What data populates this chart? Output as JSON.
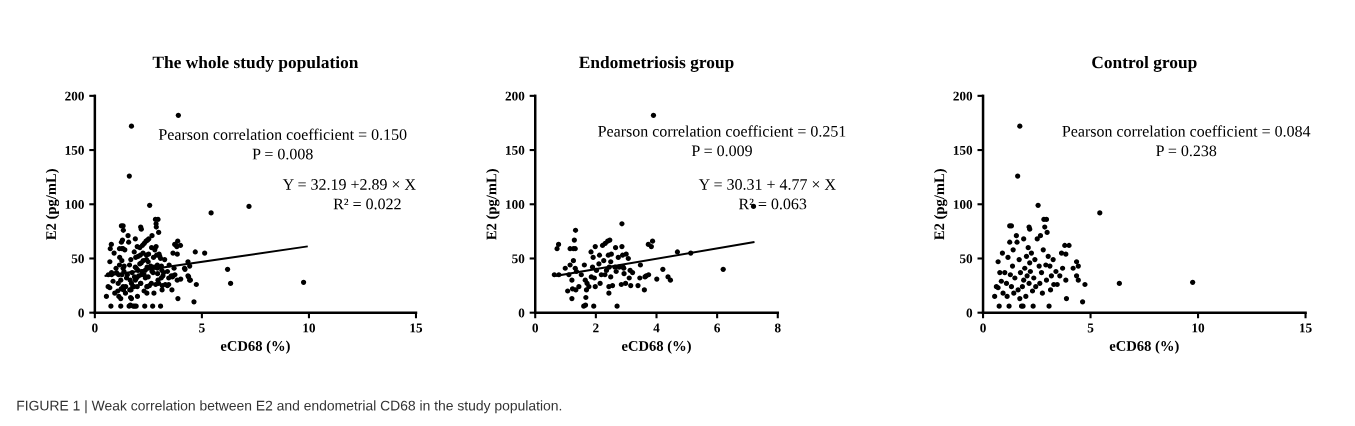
{
  "chart_data": [
    {
      "type": "scatter",
      "title": "The whole study population",
      "xlabel": "eCD68 (%)",
      "ylabel": "E2 (pg/mL)",
      "xlim": [
        0,
        15
      ],
      "xticks": [
        0,
        5,
        10,
        15
      ],
      "ylim": [
        0,
        200
      ],
      "yticks": [
        0,
        50,
        100,
        150,
        200
      ],
      "annotations": [
        "Pearson correlation coefficient = 0.150",
        "P = 0.008",
        "Y = 32.19 +2.89 × X",
        "R² = 0.022",
        "FIGURE 1 | Weak correlation between E2 and endometrial CD68 in the study population."
      ],
      "series": [
        {
          "marker": "circle",
          "color": "#000000",
          "x": [
            0.63,
            0.78,
            0.72,
            0.77,
            0.99,
            1.07,
            1.11,
            1.15,
            1.15,
            1.21,
            1.21,
            1.23,
            1.26,
            1.26,
            1.29,
            1.33,
            1.32,
            1.32,
            1.36,
            1.34,
            1.44,
            1.52,
            1.62,
            1.6,
            1.66,
            1.65,
            1.67,
            1.69,
            1.71,
            1.77,
            1.84,
            1.85,
            1.89,
            1.91,
            1.93,
            1.95,
            1.98,
            1.98,
            2.02,
            2.1,
            2.12,
            2.14,
            2.18,
            2.22,
            2.26,
            2.3,
            2.31,
            2.35,
            2.39,
            2.41,
            2.43,
            2.43,
            2.44,
            2.46,
            2.49,
            2.49,
            2.51,
            2.55,
            2.63,
            2.65,
            2.67,
            2.7,
            2.74,
            2.77,
            2.84,
            2.86,
            2.86,
            2.88,
            2.92,
            2.93,
            2.98,
            3.0,
            3.07,
            3.1,
            3.13,
            3.15,
            3.21,
            3.39,
            3.45,
            3.47,
            3.6,
            3.62,
            3.66,
            3.73,
            3.74,
            3.83,
            3.87,
            4.01,
            4.21,
            4.38,
            4.46,
            4.69,
            5.13,
            6.2,
            7.2,
            3.9,
            0.54,
            0.62,
            0.7,
            0.7,
            0.75,
            0.78,
            0.85,
            0.9,
            0.93,
            1.01,
            1.09,
            1.12,
            1.16,
            1.21,
            1.24,
            1.32,
            1.24,
            1.27,
            1.32,
            1.37,
            1.4,
            1.43,
            1.48,
            1.55,
            1.58,
            1.61,
            1.63,
            1.68,
            1.71,
            1.74,
            1.79,
            1.83,
            1.86,
            1.89,
            1.89,
            1.94,
            1.99,
            2.02,
            2.05,
            2.1,
            2.14,
            2.17,
            2.14,
            2.17,
            2.2,
            2.25,
            2.3,
            2.33,
            2.36,
            2.41,
            2.45,
            2.52,
            2.56,
            2.61,
            2.64,
            2.67,
            2.72,
            2.76,
            2.8,
            2.83,
            2.95,
            2.87,
            2.92,
            2.95,
            2.98,
            3.03,
            3.07,
            3.11,
            3.14,
            3.18,
            3.26,
            3.29,
            3.39,
            3.45,
            3.57,
            3.65,
            3.7,
            3.8,
            4.0,
            3.85,
            3.85,
            3.88,
            4.19,
            4.35,
            4.35,
            4.43,
            4.43,
            4.63,
            4.74,
            5.43,
            6.34,
            9.75,
            1.71
          ],
          "values": [
            35,
            35,
            59,
            63,
            41,
            20,
            35,
            44,
            59,
            13,
            30,
            22,
            48,
            59,
            67,
            76,
            59,
            41,
            38,
            21,
            24,
            35,
            44,
            6,
            7,
            30,
            14,
            21,
            27,
            24,
            56,
            33,
            42,
            51,
            6,
            32,
            61,
            24,
            39,
            45,
            53,
            27,
            35,
            62,
            48,
            35,
            64,
            39,
            66,
            53,
            24,
            18,
            42,
            67,
            47,
            33,
            54,
            25,
            42,
            60,
            38,
            6,
            51,
            42,
            26,
            82,
            61,
            53,
            41,
            36,
            27,
            54,
            50,
            32,
            39,
            25,
            37,
            25,
            32,
            44,
            21,
            33,
            34,
            63,
            35,
            61,
            66,
            31,
            40,
            33,
            30,
            56,
            55,
            40,
            98,
            182,
            15,
            24,
            23,
            47,
            6,
            37,
            29,
            55,
            18,
            37,
            27,
            15,
            51,
            6,
            80,
            80,
            65,
            35,
            24,
            43,
            58,
            18,
            32,
            71,
            65,
            126,
            21,
            49,
            13,
            37,
            6,
            24,
            6,
            68,
            30,
            41,
            15,
            52,
            34,
            60,
            79,
            77,
            27,
            46,
            38,
            55,
            20,
            6,
            32,
            49,
            24,
            68,
            99,
            43,
            27,
            71,
            37,
            18,
            58,
            86,
            86,
            79,
            44,
            30,
            74,
            52,
            6,
            43,
            21,
            34,
            49,
            26,
            38,
            26,
            34,
            55,
            41,
            62,
            62,
            54,
            30,
            13,
            41,
            47,
            34,
            30,
            43,
            10,
            26,
            92,
            27,
            28,
            172
          ]
        },
        {
          "type": "line",
          "marker": "none",
          "color": "#000000",
          "x": [
            0.5,
            9.9
          ],
          "values": [
            34,
            61
          ]
        }
      ]
    },
    {
      "type": "scatter",
      "title": "Endometriosis group",
      "xlabel": "eCD68 (%)",
      "ylabel": "E2 (pg/mL)",
      "xlim": [
        0,
        8
      ],
      "xticks": [
        0,
        2,
        4,
        6,
        8
      ],
      "ylim": [
        0,
        200
      ],
      "yticks": [
        0,
        50,
        100,
        150,
        200
      ],
      "annotations": [
        "Pearson correlation coefficient = 0.251",
        "P = 0.009",
        "Y = 30.31 + 4.77 × X",
        "R² = 0.063"
      ],
      "series": [
        {
          "marker": "circle",
          "color": "#000000",
          "x": [
            0.63,
            0.78,
            0.72,
            0.77,
            0.99,
            1.07,
            1.11,
            1.15,
            1.15,
            1.21,
            1.21,
            1.23,
            1.26,
            1.26,
            1.29,
            1.33,
            1.32,
            1.32,
            1.36,
            1.34,
            1.44,
            1.52,
            1.62,
            1.6,
            1.66,
            1.65,
            1.67,
            1.69,
            1.71,
            1.77,
            1.84,
            1.85,
            1.89,
            1.91,
            1.93,
            1.95,
            1.98,
            1.98,
            2.02,
            2.1,
            2.12,
            2.14,
            2.18,
            2.22,
            2.26,
            2.3,
            2.31,
            2.35,
            2.39,
            2.41,
            2.43,
            2.43,
            2.44,
            2.46,
            2.49,
            2.49,
            2.51,
            2.55,
            2.63,
            2.65,
            2.67,
            2.7,
            2.74,
            2.77,
            2.84,
            2.86,
            2.86,
            2.88,
            2.9,
            2.92,
            2.93,
            2.98,
            3.0,
            3.07,
            3.1,
            3.13,
            3.15,
            3.21,
            3.39,
            3.45,
            3.47,
            3.6,
            3.62,
            3.66,
            3.73,
            3.74,
            3.83,
            3.87,
            4.01,
            4.21,
            4.38,
            4.46,
            4.69,
            5.13,
            6.2,
            7.2,
            3.9
          ],
          "values": [
            35,
            35,
            59,
            63,
            41,
            20,
            35,
            44,
            59,
            13,
            30,
            22,
            48,
            59,
            67,
            76,
            59,
            41,
            38,
            21,
            24,
            35,
            44,
            6,
            7,
            30,
            14,
            21,
            27,
            24,
            56,
            33,
            42,
            51,
            6,
            32,
            61,
            24,
            39,
            45,
            53,
            27,
            35,
            62,
            48,
            35,
            64,
            39,
            66,
            53,
            24,
            18,
            42,
            67,
            47,
            33,
            54,
            25,
            42,
            60,
            38,
            6,
            51,
            42,
            26,
            82,
            61,
            53,
            42,
            41,
            36,
            27,
            54,
            50,
            32,
            39,
            25,
            37,
            25,
            32,
            44,
            21,
            33,
            34,
            63,
            35,
            61,
            66,
            31,
            40,
            33,
            30,
            56,
            55,
            40,
            98,
            182
          ]
        },
        {
          "type": "line",
          "marker": "none",
          "color": "#000000",
          "x": [
            0.7,
            7.2
          ],
          "values": [
            34,
            65
          ]
        }
      ]
    },
    {
      "type": "scatter",
      "title": "Control group",
      "xlabel": "eCD68 (%)",
      "ylabel": "E2 (pg/mL)",
      "xlim": [
        0,
        15
      ],
      "xticks": [
        0,
        5,
        10,
        15
      ],
      "ylim": [
        0,
        200
      ],
      "yticks": [
        0,
        50,
        100,
        150,
        200
      ],
      "annotations": [
        "Pearson correlation coefficient = 0.084",
        "P = 0.238"
      ],
      "series": [
        {
          "marker": "circle",
          "color": "#000000",
          "x": [
            0.54,
            0.62,
            0.7,
            0.7,
            0.75,
            0.78,
            0.85,
            0.9,
            0.93,
            1.01,
            1.09,
            1.12,
            1.16,
            1.21,
            1.24,
            1.32,
            1.24,
            1.27,
            1.32,
            1.37,
            1.4,
            1.43,
            1.48,
            1.55,
            1.58,
            1.61,
            1.63,
            1.68,
            1.71,
            1.74,
            1.79,
            1.83,
            1.86,
            1.89,
            1.89,
            1.94,
            1.99,
            2.02,
            2.05,
            2.1,
            2.14,
            2.17,
            2.14,
            2.17,
            2.2,
            2.25,
            2.3,
            2.33,
            2.36,
            2.41,
            2.45,
            2.52,
            2.56,
            2.61,
            2.64,
            2.67,
            2.72,
            2.76,
            2.8,
            2.83,
            2.95,
            2.87,
            2.92,
            2.95,
            2.98,
            3.03,
            3.07,
            3.11,
            3.14,
            3.18,
            3.26,
            3.29,
            3.39,
            3.45,
            3.57,
            3.65,
            3.7,
            3.8,
            4.0,
            3.85,
            3.85,
            3.88,
            4.19,
            4.35,
            4.35,
            4.43,
            4.43,
            4.63,
            4.74,
            5.43,
            6.34,
            9.75,
            1.71
          ],
          "values": [
            15,
            24,
            23,
            47,
            6,
            37,
            29,
            55,
            18,
            37,
            27,
            15,
            51,
            6,
            80,
            80,
            65,
            35,
            24,
            43,
            58,
            18,
            32,
            71,
            65,
            126,
            21,
            49,
            13,
            37,
            6,
            24,
            6,
            68,
            30,
            41,
            15,
            52,
            34,
            60,
            79,
            77,
            27,
            46,
            38,
            55,
            20,
            6,
            32,
            49,
            24,
            68,
            99,
            43,
            27,
            71,
            37,
            18,
            58,
            86,
            86,
            79,
            44,
            30,
            74,
            52,
            6,
            43,
            21,
            34,
            49,
            26,
            38,
            26,
            34,
            55,
            41,
            62,
            62,
            54,
            30,
            13,
            41,
            47,
            34,
            30,
            43,
            10,
            26,
            92,
            27,
            28,
            172
          ]
        }
      ]
    }
  ]
}
